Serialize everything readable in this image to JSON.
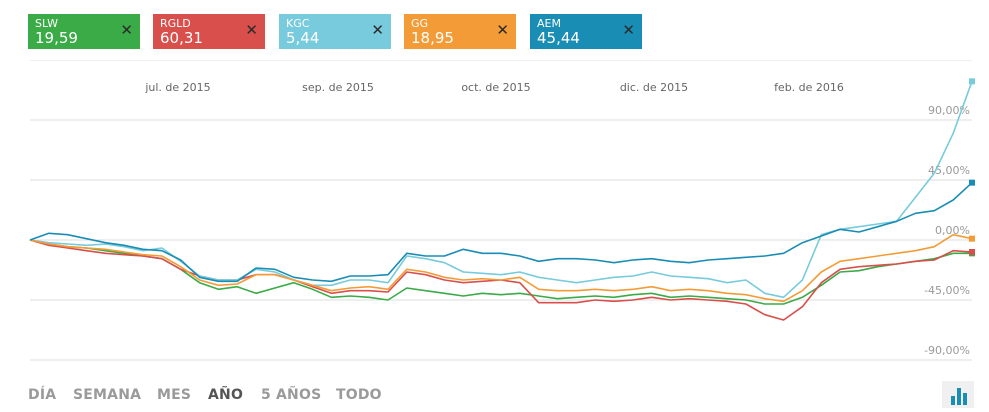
{
  "tickers": [
    {
      "symbol": "SLW",
      "value": "19,59",
      "color": "#3bab48"
    },
    {
      "symbol": "RGLD",
      "value": "60,31",
      "color": "#d94f4c"
    },
    {
      "symbol": "KGC",
      "value": "5,44",
      "color": "#77cbdc"
    },
    {
      "symbol": "GG",
      "value": "18,95",
      "color": "#f39c37"
    },
    {
      "symbol": "AEM",
      "value": "45,44",
      "color": "#1a8db5"
    }
  ],
  "close_glyph": "✕",
  "ranges": [
    {
      "label": "DÍA",
      "active": false
    },
    {
      "label": "SEMANA",
      "active": false
    },
    {
      "label": "MES",
      "active": false
    },
    {
      "label": "AÑO",
      "active": true
    },
    {
      "label": "5 AÑOS",
      "active": false
    },
    {
      "label": "TODO",
      "active": false
    }
  ],
  "chart_type_icon": "bar-chart-icon",
  "chart_data": {
    "type": "line",
    "x_tick_labels": [
      "jul. de 2015",
      "sep. de 2015",
      "oct. de 2015",
      "dic. de 2015",
      "feb. de 2016"
    ],
    "y_tick_labels": [
      "90,00%",
      "45,00%",
      "0,00%",
      "-45,00%",
      "-90,00%"
    ],
    "y_ticks": [
      90,
      45,
      0,
      -45,
      -90
    ],
    "ylim": [
      -90,
      135
    ],
    "x": [
      0,
      2,
      4,
      6,
      8,
      10,
      12,
      14,
      16,
      18,
      20,
      22,
      24,
      26,
      28,
      30,
      32,
      34,
      36,
      38,
      40,
      42,
      44,
      46,
      48,
      50,
      52,
      54,
      56,
      58,
      60,
      62,
      64,
      66,
      68,
      70,
      72,
      74,
      76,
      78,
      80,
      82,
      84,
      86,
      88,
      90,
      92,
      94,
      96,
      98,
      100
    ],
    "series": [
      {
        "name": "SLW",
        "color": "#3bab48",
        "values": [
          0,
          -3,
          -5,
          -6,
          -8,
          -10,
          -12,
          -14,
          -22,
          -32,
          -37,
          -35,
          -40,
          -36,
          -32,
          -37,
          -43,
          -42,
          -43,
          -45,
          -36,
          -38,
          -40,
          -42,
          -40,
          -41,
          -40,
          -42,
          -44,
          -43,
          -42,
          -43,
          -41,
          -40,
          -43,
          -42,
          -43,
          -44,
          -45,
          -48,
          -48,
          -43,
          -34,
          -24,
          -23,
          -20,
          -18,
          -16,
          -14,
          -10,
          -10
        ]
      },
      {
        "name": "RGLD",
        "color": "#d94f4c",
        "values": [
          0,
          -4,
          -6,
          -8,
          -10,
          -11,
          -12,
          -14,
          -22,
          -27,
          -30,
          -30,
          -26,
          -26,
          -30,
          -35,
          -40,
          -38,
          -38,
          -39,
          -24,
          -26,
          -30,
          -32,
          -31,
          -30,
          -32,
          -47,
          -47,
          -47,
          -45,
          -46,
          -45,
          -43,
          -45,
          -44,
          -45,
          -46,
          -48,
          -56,
          -60,
          -50,
          -32,
          -22,
          -20,
          -19,
          -18,
          -16,
          -15,
          -8,
          -9
        ]
      },
      {
        "name": "KGC",
        "color": "#77cbdc",
        "values": [
          0,
          -2,
          -3,
          -4,
          -3,
          -5,
          -8,
          -6,
          -16,
          -27,
          -30,
          -30,
          -22,
          -24,
          -30,
          -34,
          -34,
          -30,
          -30,
          -32,
          -12,
          -14,
          -17,
          -24,
          -25,
          -26,
          -24,
          -28,
          -30,
          -32,
          -30,
          -28,
          -27,
          -24,
          -27,
          -28,
          -29,
          -32,
          -30,
          -40,
          -43,
          -30,
          4,
          8,
          10,
          12,
          14,
          32,
          50,
          80,
          119
        ]
      },
      {
        "name": "GG",
        "color": "#f39c37",
        "values": [
          0,
          -3,
          -5,
          -6,
          -7,
          -9,
          -11,
          -12,
          -20,
          -30,
          -34,
          -33,
          -26,
          -26,
          -30,
          -34,
          -38,
          -36,
          -35,
          -37,
          -22,
          -24,
          -28,
          -30,
          -29,
          -30,
          -28,
          -37,
          -38,
          -38,
          -37,
          -38,
          -37,
          -35,
          -38,
          -37,
          -38,
          -40,
          -41,
          -44,
          -46,
          -38,
          -24,
          -16,
          -14,
          -12,
          -10,
          -8,
          -5,
          4,
          1
        ]
      },
      {
        "name": "AEM",
        "color": "#1a8db5",
        "values": [
          0,
          5,
          4,
          1,
          -2,
          -4,
          -7,
          -8,
          -15,
          -28,
          -31,
          -31,
          -21,
          -22,
          -28,
          -30,
          -31,
          -27,
          -27,
          -26,
          -10,
          -12,
          -12,
          -7,
          -10,
          -10,
          -12,
          -16,
          -14,
          -14,
          -15,
          -17,
          -15,
          -14,
          -16,
          -17,
          -15,
          -14,
          -13,
          -12,
          -10,
          -2,
          3,
          8,
          6,
          10,
          14,
          20,
          22,
          30,
          43
        ]
      }
    ]
  }
}
